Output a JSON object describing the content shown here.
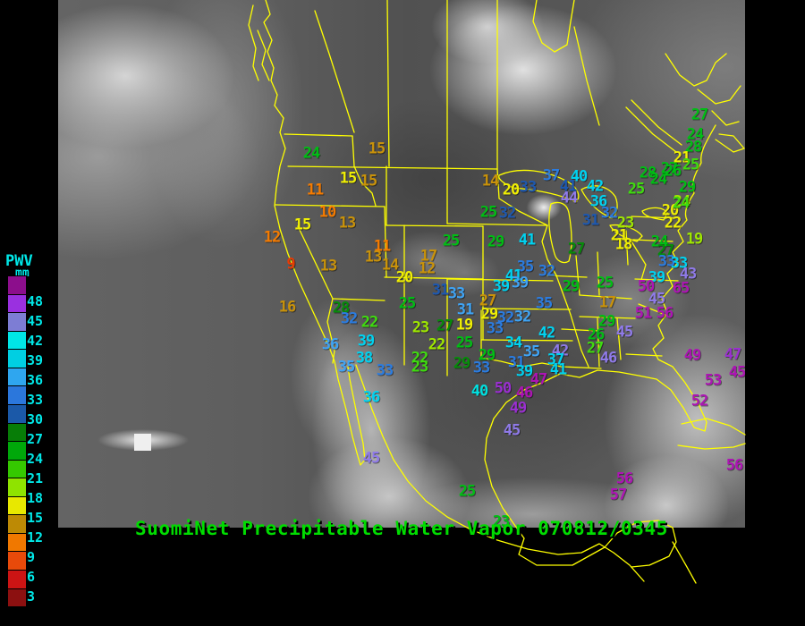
{
  "caption": {
    "text": "SuomiNet Precipitable Water Vapor 070812/0345",
    "color": "#00dc00"
  },
  "legend": {
    "title": "PWV",
    "unit": "mm",
    "labels": [
      "48",
      "45",
      "42",
      "39",
      "36",
      "33",
      "30",
      "27",
      "24",
      "21",
      "18",
      "15",
      "12",
      "9",
      "6",
      "3"
    ],
    "colors": [
      "#8c0e8c",
      "#9a30e0",
      "#7d7dd4",
      "#00e6e6",
      "#00cfe2",
      "#2fa6ef",
      "#2b77dc",
      "#1b59a8",
      "#077d07",
      "#00a80a",
      "#35c800",
      "#8fe300",
      "#e8e800",
      "#bd8a05",
      "#f07800",
      "#e84a0a",
      "#cc1414",
      "#8c1010"
    ]
  },
  "map": {
    "border_color": "#ffff00"
  },
  "stations": [
    [
      "24",
      348,
      172,
      "#00be14"
    ],
    [
      "15",
      421,
      167,
      "#c9920a"
    ],
    [
      "15",
      389,
      200,
      "#f0ef04"
    ],
    [
      "15",
      412,
      203,
      "#c9920a"
    ],
    [
      "11",
      352,
      213,
      "#f57b00"
    ],
    [
      "10",
      366,
      238,
      "#f57b00"
    ],
    [
      "13",
      388,
      250,
      "#c9920a"
    ],
    [
      "15",
      338,
      252,
      "#f0ef04"
    ],
    [
      "12",
      304,
      266,
      "#f57b00"
    ],
    [
      "9",
      325,
      296,
      "#e83a05"
    ],
    [
      "13",
      367,
      298,
      "#c9920a"
    ],
    [
      "16",
      321,
      344,
      "#c9920a"
    ],
    [
      "11",
      427,
      276,
      "#f57b00"
    ],
    [
      "13",
      417,
      288,
      "#c9920a"
    ],
    [
      "14",
      436,
      297,
      "#c9920a"
    ],
    [
      "17",
      479,
      287,
      "#c9920a"
    ],
    [
      "12",
      477,
      301,
      "#c9920a"
    ],
    [
      "20",
      452,
      311,
      "#f0ef04"
    ],
    [
      "14",
      548,
      203,
      "#c9920a"
    ],
    [
      "20",
      571,
      213,
      "#f0ef04"
    ],
    [
      "33",
      590,
      210,
      "#1d58b0"
    ],
    [
      "37",
      616,
      197,
      "#2b7ce0"
    ],
    [
      "40",
      647,
      198,
      "#00d2f0"
    ],
    [
      "41",
      635,
      209,
      "#1d58b0"
    ],
    [
      "42",
      665,
      209,
      "#00d2f0"
    ],
    [
      "44",
      636,
      222,
      "#8f7ae8"
    ],
    [
      "36",
      669,
      226,
      "#00d2f0"
    ],
    [
      "32",
      681,
      239,
      "#2b7ce0"
    ],
    [
      "31",
      660,
      247,
      "#1d58b0"
    ],
    [
      "25",
      546,
      238,
      "#00be14"
    ],
    [
      "32",
      567,
      239,
      "#1d58b0"
    ],
    [
      "29",
      554,
      271,
      "#00be14"
    ],
    [
      "41",
      589,
      269,
      "#00d2f0"
    ],
    [
      "25",
      504,
      270,
      "#00be14"
    ],
    [
      "27",
      644,
      279,
      "#068c0a"
    ],
    [
      "28",
      724,
      194,
      "#00be14"
    ],
    [
      "24",
      736,
      201,
      "#00be14"
    ],
    [
      "25",
      711,
      212,
      "#3fdc0f"
    ],
    [
      "27",
      748,
      189,
      "#00be14"
    ],
    [
      "23",
      699,
      250,
      "#9fe800"
    ],
    [
      "21",
      692,
      264,
      "#f0ef04"
    ],
    [
      "18",
      697,
      274,
      "#f0ef04"
    ],
    [
      "20",
      749,
      236,
      "#f0ef04"
    ],
    [
      "22",
      752,
      250,
      "#f0ef04"
    ],
    [
      "24",
      737,
      271,
      "#00be14"
    ],
    [
      "27",
      744,
      281,
      "#068c0a"
    ],
    [
      "24",
      762,
      226,
      "#9fe800"
    ],
    [
      "27",
      782,
      129,
      "#00be14"
    ],
    [
      "24",
      777,
      151,
      "#00be14"
    ],
    [
      "28",
      775,
      165,
      "#00be14"
    ],
    [
      "21",
      762,
      177,
      "#f0ef04"
    ],
    [
      "25",
      772,
      185,
      "#3fdc0f"
    ],
    [
      "26",
      752,
      192,
      "#00be14"
    ],
    [
      "29",
      768,
      210,
      "#00be14"
    ],
    [
      "24",
      761,
      228,
      "#3fdc0f"
    ],
    [
      "19",
      776,
      268,
      "#9fe800"
    ],
    [
      "33",
      745,
      293,
      "#2b7ce0"
    ],
    [
      "33",
      759,
      295,
      "#00d2f0"
    ],
    [
      "35",
      587,
      299,
      "#2b7ce0"
    ],
    [
      "32",
      611,
      304,
      "#2b7ce0"
    ],
    [
      "41",
      574,
      309,
      "#00d2f0"
    ],
    [
      "39",
      581,
      317,
      "#3fa4f5"
    ],
    [
      "39",
      560,
      321,
      "#00d2f0"
    ],
    [
      "29",
      638,
      321,
      "#00be14"
    ],
    [
      "25",
      676,
      317,
      "#00be14"
    ],
    [
      "17",
      679,
      339,
      "#c9920a"
    ],
    [
      "35",
      608,
      340,
      "#2b7ce0"
    ],
    [
      "29",
      678,
      360,
      "#00be14"
    ],
    [
      "26",
      666,
      375,
      "#00be14"
    ],
    [
      "27",
      665,
      390,
      "#3fdc0f"
    ],
    [
      "45",
      698,
      372,
      "#8f7ae8"
    ],
    [
      "46",
      680,
      401,
      "#8f7ae8"
    ],
    [
      "25",
      455,
      340,
      "#00be14"
    ],
    [
      "31",
      492,
      325,
      "#1d58b0"
    ],
    [
      "33",
      510,
      329,
      "#3fa4f5"
    ],
    [
      "27",
      545,
      337,
      "#c9920a"
    ],
    [
      "29",
      547,
      352,
      "#f0ef04"
    ],
    [
      "31",
      520,
      347,
      "#3fa4f5"
    ],
    [
      "32",
      565,
      356,
      "#2b7ce0"
    ],
    [
      "33",
      553,
      368,
      "#2b7ce0"
    ],
    [
      "32",
      584,
      355,
      "#3fa4f5"
    ],
    [
      "23",
      470,
      367,
      "#9fe800"
    ],
    [
      "27",
      497,
      365,
      "#068c0a"
    ],
    [
      "19",
      519,
      364,
      "#f0ef04"
    ],
    [
      "22",
      488,
      386,
      "#9fe800"
    ],
    [
      "25",
      519,
      384,
      "#00be14"
    ],
    [
      "22",
      469,
      401,
      "#3fdc0f"
    ],
    [
      "23",
      469,
      411,
      "#3fdc0f"
    ],
    [
      "29",
      544,
      398,
      "#00be14"
    ],
    [
      "29",
      516,
      407,
      "#068c0a"
    ],
    [
      "33",
      538,
      412,
      "#2b7ce0"
    ],
    [
      "34",
      574,
      384,
      "#00d2f0"
    ],
    [
      "35",
      594,
      394,
      "#3fa4f5"
    ],
    [
      "31",
      577,
      406,
      "#2b7ce0"
    ],
    [
      "42",
      611,
      373,
      "#00d2f0"
    ],
    [
      "42",
      626,
      393,
      "#8f7ae8"
    ],
    [
      "37",
      621,
      403,
      "#00d2f0"
    ],
    [
      "41",
      624,
      414,
      "#00d2f0"
    ],
    [
      "39",
      586,
      416,
      "#00d2f0"
    ],
    [
      "47",
      602,
      425,
      "#ad14b4"
    ],
    [
      "40",
      536,
      438,
      "#00e0e0"
    ],
    [
      "50",
      562,
      435,
      "#9a2fd0"
    ],
    [
      "46",
      586,
      440,
      "#ad14b4"
    ],
    [
      "49",
      579,
      457,
      "#9a2fd0"
    ],
    [
      "45",
      572,
      482,
      "#8f7ae8"
    ],
    [
      "36",
      369,
      386,
      "#3fa4f5"
    ],
    [
      "39",
      409,
      382,
      "#00d2f0"
    ],
    [
      "38",
      407,
      401,
      "#00d2f0"
    ],
    [
      "35",
      387,
      411,
      "#3fa4f5"
    ],
    [
      "33",
      430,
      415,
      "#2b7ce0"
    ],
    [
      "36",
      415,
      445,
      "#00d2f0"
    ],
    [
      "28",
      381,
      345,
      "#068c0a"
    ],
    [
      "32",
      390,
      357,
      "#2b7ce0"
    ],
    [
      "22",
      413,
      361,
      "#3fdc0f"
    ],
    [
      "39",
      734,
      311,
      "#00d2f0"
    ],
    [
      "43",
      769,
      307,
      "#8f7ae8"
    ],
    [
      "50",
      722,
      321,
      "#ad14b4"
    ],
    [
      "65",
      761,
      323,
      "#ad14b4"
    ],
    [
      "45",
      734,
      335,
      "#8f7ae8"
    ],
    [
      "51",
      719,
      351,
      "#ad14b4"
    ],
    [
      "56",
      743,
      351,
      "#ad14b4"
    ],
    [
      "49",
      774,
      398,
      "#ad14b4"
    ],
    [
      "47",
      819,
      397,
      "#9a2fd0"
    ],
    [
      "45",
      824,
      417,
      "#ad14b4"
    ],
    [
      "53",
      797,
      426,
      "#ad14b4"
    ],
    [
      "52",
      782,
      449,
      "#ad14b4"
    ],
    [
      "56",
      821,
      521,
      "#ad14b4"
    ],
    [
      "45",
      415,
      513,
      "#8f7ae8"
    ],
    [
      "25",
      522,
      550,
      "#00be14"
    ],
    [
      "56",
      698,
      536,
      "#ad14b4"
    ],
    [
      "57",
      691,
      554,
      "#ad14b4"
    ],
    [
      "23",
      560,
      584,
      "#00be14"
    ]
  ]
}
